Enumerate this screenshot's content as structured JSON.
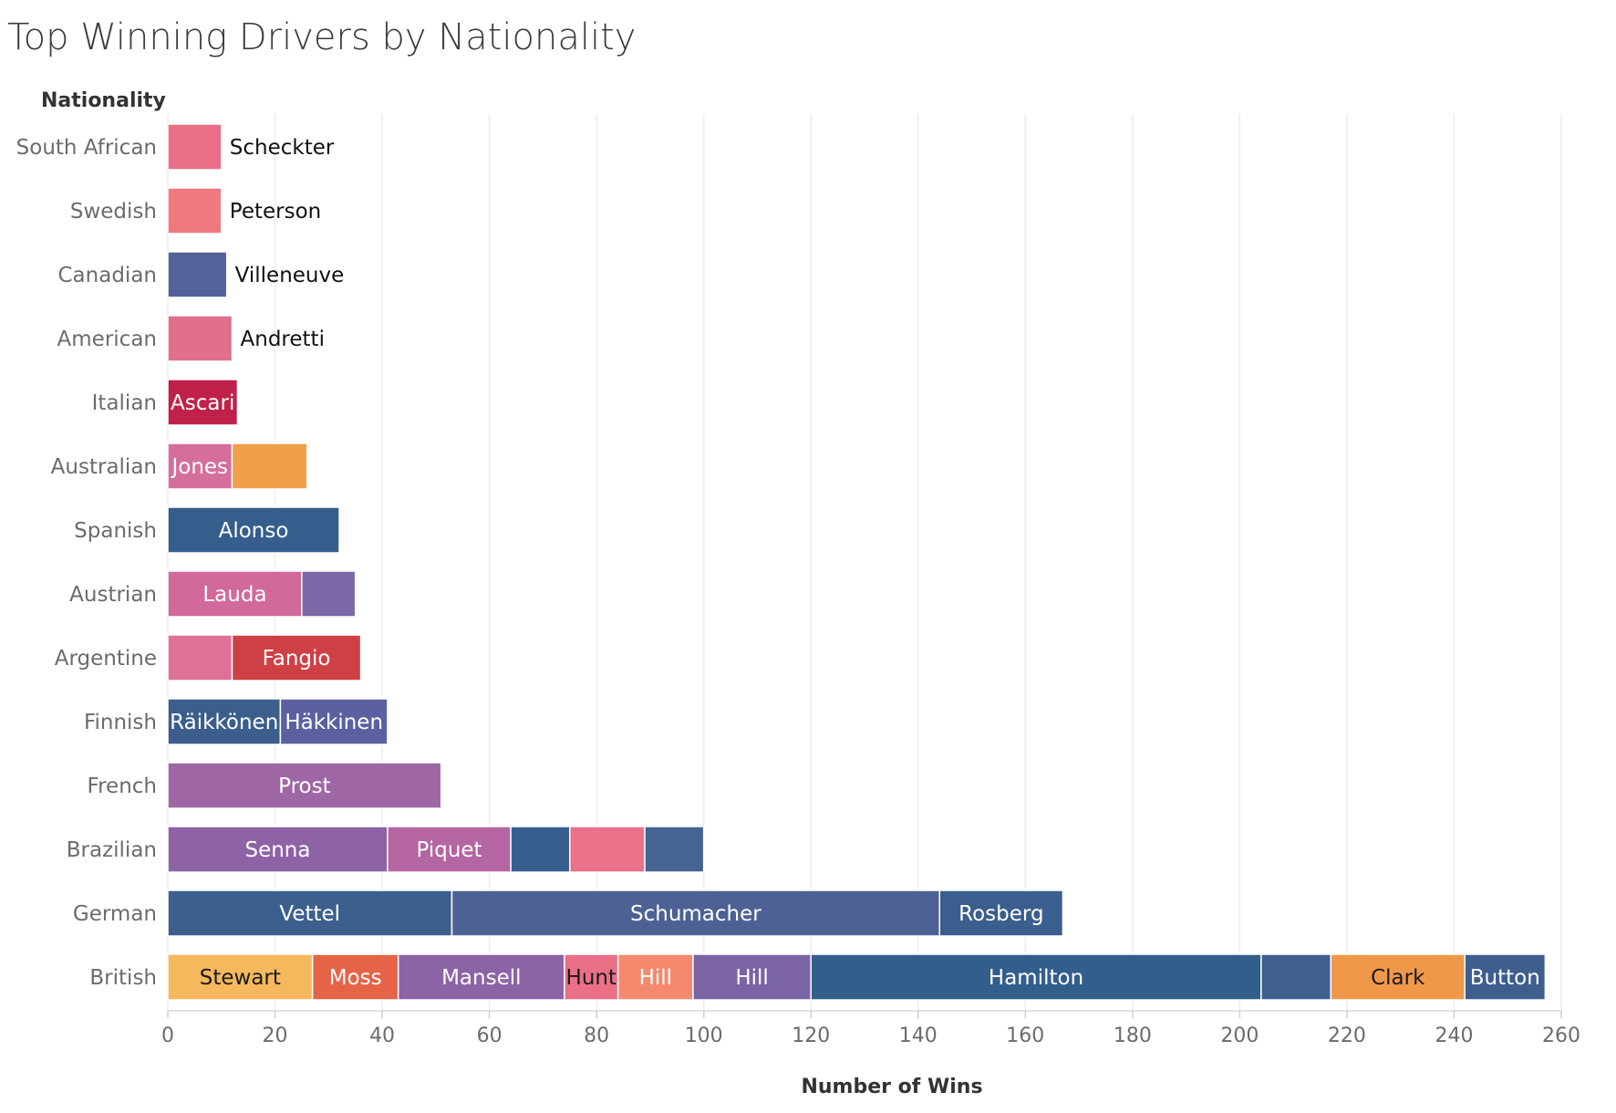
{
  "chart_data": {
    "type": "bar",
    "orientation": "horizontal",
    "stacked": true,
    "title": "Top Winning Drivers by Nationality",
    "row_header": "Nationality",
    "xlabel": "Number of Wins",
    "xlim": [
      0,
      260
    ],
    "xticks": [
      0,
      20,
      40,
      60,
      80,
      100,
      120,
      140,
      160,
      180,
      200,
      220,
      240,
      260
    ],
    "grid": true,
    "legend": "none",
    "categories": [
      {
        "label": "South African",
        "segments": [
          {
            "driver": "Scheckter",
            "wins": 10,
            "color": "#e96e86"
          }
        ]
      },
      {
        "label": "Swedish",
        "segments": [
          {
            "driver": "Peterson",
            "wins": 10,
            "color": "#f07880"
          }
        ]
      },
      {
        "label": "Canadian",
        "segments": [
          {
            "driver": "Villeneuve",
            "wins": 11,
            "color": "#52639a"
          }
        ]
      },
      {
        "label": "American",
        "segments": [
          {
            "driver": "Andretti",
            "wins": 12,
            "color": "#e0708c"
          }
        ]
      },
      {
        "label": "Italian",
        "segments": [
          {
            "driver": "Ascari",
            "wins": 13,
            "color": "#c0214a"
          }
        ]
      },
      {
        "label": "Australian",
        "segments": [
          {
            "driver": "Jones",
            "wins": 12,
            "color": "#d46f9b"
          },
          {
            "driver": "",
            "wins": 14,
            "color": "#f0a048"
          }
        ]
      },
      {
        "label": "Spanish",
        "segments": [
          {
            "driver": "Alonso",
            "wins": 32,
            "color": "#355e8c"
          }
        ]
      },
      {
        "label": "Austrian",
        "segments": [
          {
            "driver": "Lauda",
            "wins": 25,
            "color": "#d1699a"
          },
          {
            "driver": "",
            "wins": 10,
            "color": "#7b66a6"
          }
        ]
      },
      {
        "label": "Argentine",
        "segments": [
          {
            "driver": "",
            "wins": 12,
            "color": "#de7196"
          },
          {
            "driver": "Fangio",
            "wins": 24,
            "color": "#cf4045"
          }
        ]
      },
      {
        "label": "Finnish",
        "segments": [
          {
            "driver": "Räikkönen",
            "wins": 21,
            "color": "#3b5e8c"
          },
          {
            "driver": "Häkkinen",
            "wins": 20,
            "color": "#5b61a0"
          }
        ]
      },
      {
        "label": "French",
        "segments": [
          {
            "driver": "Prost",
            "wins": 51,
            "color": "#9e66a4"
          }
        ]
      },
      {
        "label": "Brazilian",
        "segments": [
          {
            "driver": "Senna",
            "wins": 41,
            "color": "#8e63a6"
          },
          {
            "driver": "Piquet",
            "wins": 23,
            "color": "#b565a2"
          },
          {
            "driver": "",
            "wins": 11,
            "color": "#365e8e"
          },
          {
            "driver": "",
            "wins": 14,
            "color": "#ea7188"
          },
          {
            "driver": "",
            "wins": 11,
            "color": "#456393"
          }
        ]
      },
      {
        "label": "German",
        "segments": [
          {
            "driver": "Vettel",
            "wins": 53,
            "color": "#3d5f8e"
          },
          {
            "driver": "Schumacher",
            "wins": 91,
            "color": "#4d6294"
          },
          {
            "driver": "Rosberg",
            "wins": 23,
            "color": "#3a5e8d"
          }
        ]
      },
      {
        "label": "British",
        "segments": [
          {
            "driver": "Stewart",
            "wins": 27,
            "color": "#f5b85c",
            "label_color": "#1a1a1a"
          },
          {
            "driver": "Moss",
            "wins": 16,
            "color": "#e56448"
          },
          {
            "driver": "Mansell",
            "wins": 31,
            "color": "#8c63a6"
          },
          {
            "driver": "Hunt",
            "wins": 10,
            "color": "#ea7088",
            "label_color": "#1a1a1a"
          },
          {
            "driver": "Hill",
            "wins": 14,
            "color": "#f5896e"
          },
          {
            "driver": "Hill",
            "wins": 22,
            "color": "#7a64a6"
          },
          {
            "driver": "Hamilton",
            "wins": 84,
            "color": "#325e8c"
          },
          {
            "driver": "",
            "wins": 13,
            "color": "#3f5f8f"
          },
          {
            "driver": "Clark",
            "wins": 25,
            "color": "#f0984a",
            "label_color": "#1a1a1a"
          },
          {
            "driver": "Button",
            "wins": 15,
            "color": "#3e5f8e"
          }
        ]
      }
    ]
  }
}
